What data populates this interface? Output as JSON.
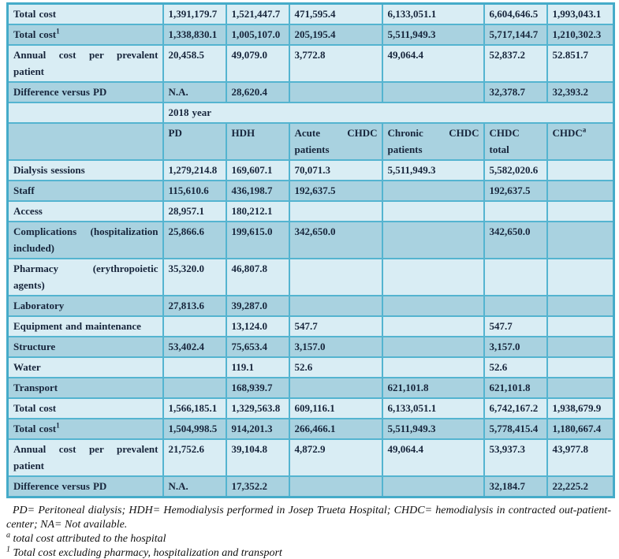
{
  "colors": {
    "row_light": "#d9edf4",
    "row_dark": "#a9d2e0",
    "cell_border": "#54b4d0",
    "outer_border": "#45abc9",
    "table_text": "#17253b",
    "footnote_text": "#101010"
  },
  "table": {
    "year_banner": "2018 year",
    "column_headers": [
      {
        "text": "PD",
        "sup": ""
      },
      {
        "text": "HDH",
        "sup": ""
      },
      {
        "text": "Acute CHDC patients",
        "sup": ""
      },
      {
        "text": "Chronic CHDC patients",
        "sup": ""
      },
      {
        "text": "CHDC total",
        "sup": ""
      },
      {
        "text": "CHDC",
        "sup": "a"
      }
    ],
    "rows": [
      {
        "type": "data",
        "label": "Total cost",
        "sup": "",
        "values": [
          "1,391,179.7",
          "1,521,447.7",
          "471,595.4",
          "6,133,051.1",
          "6,604,646.5",
          "1,993,043.1"
        ]
      },
      {
        "type": "data",
        "label": "Total cost",
        "sup": "1",
        "values": [
          "1,338,830.1",
          "1,005,107.0",
          "205,195.4",
          "5,511,949.3",
          "5,717,144.7",
          "1,210,302.3"
        ]
      },
      {
        "type": "data",
        "label": "Annual cost per prevalent patient",
        "sup": "",
        "values": [
          "20,458.5",
          "49,079.0",
          "3,772.8",
          "49,064.4",
          "52,837.2",
          "52.851.7"
        ]
      },
      {
        "type": "data",
        "label": "Difference versus PD",
        "sup": "",
        "values": [
          "N.A.",
          "28,620.4",
          "",
          "",
          "32,378.7",
          "32,393.2"
        ]
      },
      {
        "type": "year"
      },
      {
        "type": "header"
      },
      {
        "type": "data",
        "label": "Dialysis sessions",
        "sup": "",
        "values": [
          "1,279,214.8",
          "169,607.1",
          "70,071.3",
          "5,511,949.3",
          "5,582,020.6",
          ""
        ]
      },
      {
        "type": "data",
        "label": "Staff",
        "sup": "",
        "values": [
          "115,610.6",
          "436,198.7",
          "192,637.5",
          "",
          "192,637.5",
          ""
        ]
      },
      {
        "type": "data",
        "label": "Access",
        "sup": "",
        "values": [
          "28,957.1",
          "180,212.1",
          "",
          "",
          "",
          ""
        ]
      },
      {
        "type": "data",
        "label": "Complications (hospitalization included)",
        "sup": "",
        "values": [
          "25,866.6",
          "199,615.0",
          "342,650.0",
          "",
          "342,650.0",
          ""
        ]
      },
      {
        "type": "data",
        "label": "Pharmacy (erythropoietic agents)",
        "sup": "",
        "values": [
          "35,320.0",
          "46,807.8",
          "",
          "",
          "",
          ""
        ]
      },
      {
        "type": "data",
        "label": "Laboratory",
        "sup": "",
        "values": [
          "27,813.6",
          "39,287.0",
          "",
          "",
          "",
          ""
        ]
      },
      {
        "type": "data",
        "label": "Equipment and maintenance",
        "sup": "",
        "values": [
          "",
          "13,124.0",
          "547.7",
          "",
          "547.7",
          ""
        ]
      },
      {
        "type": "data",
        "label": "Structure",
        "sup": "",
        "values": [
          "53,402.4",
          "75,653.4",
          "3,157.0",
          "",
          "3,157.0",
          ""
        ]
      },
      {
        "type": "data",
        "label": "Water",
        "sup": "",
        "values": [
          "",
          "119.1",
          "52.6",
          "",
          "52.6",
          ""
        ]
      },
      {
        "type": "data",
        "label": "Transport",
        "sup": "",
        "values": [
          "",
          "168,939.7",
          "",
          "621,101.8",
          "621,101.8",
          ""
        ]
      },
      {
        "type": "data",
        "label": "Total cost",
        "sup": "",
        "values": [
          "1,566,185.1",
          "1,329,563.8",
          "609,116.1",
          "6,133,051.1",
          "6,742,167.2",
          "1,938,679.9"
        ]
      },
      {
        "type": "data",
        "label": "Total cost",
        "sup": "1",
        "values": [
          "1,504,998.5",
          "914,201.3",
          "266,466.1",
          "5,511,949.3",
          "5,778,415.4",
          "1,180,667.4"
        ]
      },
      {
        "type": "data",
        "label": "Annual cost per prevalent patient",
        "sup": "",
        "values": [
          "21,752.6",
          "39,104.8",
          "4,872.9",
          "49,064.4",
          "53,937.3",
          "43,977.8"
        ]
      },
      {
        "type": "data",
        "label": "Difference versus PD",
        "sup": "",
        "values": [
          "N.A.",
          "17,352.2",
          "",
          "",
          "32,184.7",
          "22,225.2"
        ]
      }
    ]
  },
  "footnotes": {
    "abbreviations": "PD= Peritoneal dialysis; HDH= Hemodialysis performed in Josep Trueta Hospital; CHDC= hemodialysis in contracted out-patient-center; NA= Not available.",
    "note_a_marker": "a",
    "note_a_text": " total cost attributed to the hospital",
    "note_1_marker": "1",
    "note_1_text": " Total cost excluding pharmacy, hospitalization and transport"
  }
}
